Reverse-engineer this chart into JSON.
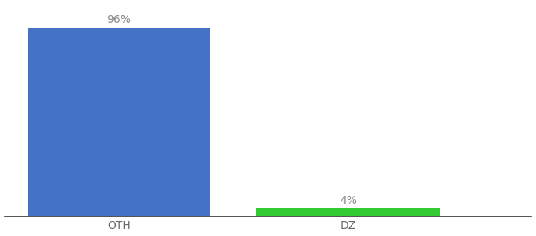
{
  "categories": [
    "OTH",
    "DZ"
  ],
  "values": [
    96,
    4
  ],
  "bar_colors": [
    "#4472c4",
    "#33cc33"
  ],
  "value_labels": [
    "96%",
    "4%"
  ],
  "background_color": "#ffffff",
  "ylim": [
    0,
    108
  ],
  "bar_width": 0.8,
  "label_fontsize": 10,
  "tick_fontsize": 10,
  "x_positions": [
    0,
    1
  ],
  "xlim": [
    -0.5,
    1.8
  ]
}
